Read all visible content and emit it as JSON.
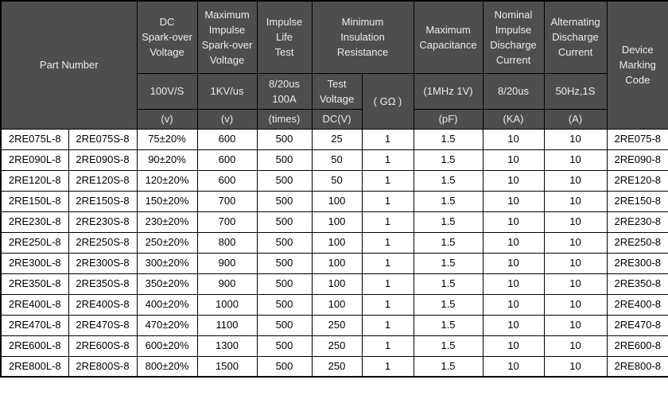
{
  "colors": {
    "header_bg": "#4e4e4e",
    "header_text": "#ebebeb",
    "border": "#000000",
    "cell_text": "#000000",
    "page_bg": "#ffffff"
  },
  "table": {
    "headers": {
      "part_number": "Part Number",
      "dc_sparkover": {
        "title": "DC\nSpark-over\nVoltage",
        "condition": "100V/S",
        "unit": "(v)"
      },
      "max_impulse_sparkover": {
        "title": "Maximum\nImpulse\nSpark-over\nVoltage",
        "condition": "1KV/us",
        "unit": "(v)"
      },
      "impulse_life": {
        "title": "Impulse\nLife\nTest",
        "condition": "8/20us\n100A",
        "unit": "(times)"
      },
      "min_insulation": {
        "title": "Minimum\nInsulation\nResistance",
        "condition_a": "Test\nVoltage",
        "unit_a": "DC(V)",
        "condition_b": "( GΩ )"
      },
      "max_capacitance": {
        "title": "Maximum\nCapacitance",
        "condition": "(1MHz 1V)",
        "unit": "(pF)"
      },
      "nominal_impulse_discharge": {
        "title": "Nominal\nImpulse\nDischarge\nCurrent",
        "condition": "8/20us",
        "unit": "(KA)"
      },
      "alternating_discharge": {
        "title": "Alternating\nDischarge\nCurrent",
        "condition": "50Hz,1S",
        "unit": "(A)"
      },
      "device_marking": {
        "title": "Device\nMarking\nCode"
      }
    },
    "rows": [
      [
        "2RE075L-8",
        "2RE075S-8",
        "75±20%",
        "600",
        "500",
        "25",
        "1",
        "1.5",
        "10",
        "10",
        "2RE075-8"
      ],
      [
        "2RE090L-8",
        "2RE090S-8",
        "90±20%",
        "600",
        "500",
        "50",
        "1",
        "1.5",
        "10",
        "10",
        "2RE090-8"
      ],
      [
        "2RE120L-8",
        "2RE120S-8",
        "120±20%",
        "600",
        "500",
        "50",
        "1",
        "1.5",
        "10",
        "10",
        "2RE120-8"
      ],
      [
        "2RE150L-8",
        "2RE150S-8",
        "150±20%",
        "700",
        "500",
        "100",
        "1",
        "1.5",
        "10",
        "10",
        "2RE150-8"
      ],
      [
        "2RE230L-8",
        "2RE230S-8",
        "230±20%",
        "700",
        "500",
        "100",
        "1",
        "1.5",
        "10",
        "10",
        "2RE230-8"
      ],
      [
        "2RE250L-8",
        "2RE250S-8",
        "250±20%",
        "800",
        "500",
        "100",
        "1",
        "1.5",
        "10",
        "10",
        "2RE250-8"
      ],
      [
        "2RE300L-8",
        "2RE300S-8",
        "300±20%",
        "900",
        "500",
        "100",
        "1",
        "1.5",
        "10",
        "10",
        "2RE300-8"
      ],
      [
        "2RE350L-8",
        "2RE350S-8",
        "350±20%",
        "900",
        "500",
        "100",
        "1",
        "1.5",
        "10",
        "10",
        "2RE350-8"
      ],
      [
        "2RE400L-8",
        "2RE400S-8",
        "400±20%",
        "1000",
        "500",
        "100",
        "1",
        "1.5",
        "10",
        "10",
        "2RE400-8"
      ],
      [
        "2RE470L-8",
        "2RE470S-8",
        "470±20%",
        "1100",
        "500",
        "250",
        "1",
        "1.5",
        "10",
        "10",
        "2RE470-8"
      ],
      [
        "2RE600L-8",
        "2RE600S-8",
        "600±20%",
        "1300",
        "500",
        "250",
        "1",
        "1.5",
        "10",
        "10",
        "2RE600-8"
      ],
      [
        "2RE800L-8",
        "2RE800S-8",
        "800±20%",
        "1500",
        "500",
        "250",
        "1",
        "1.5",
        "10",
        "10",
        "2RE800-8"
      ]
    ]
  }
}
